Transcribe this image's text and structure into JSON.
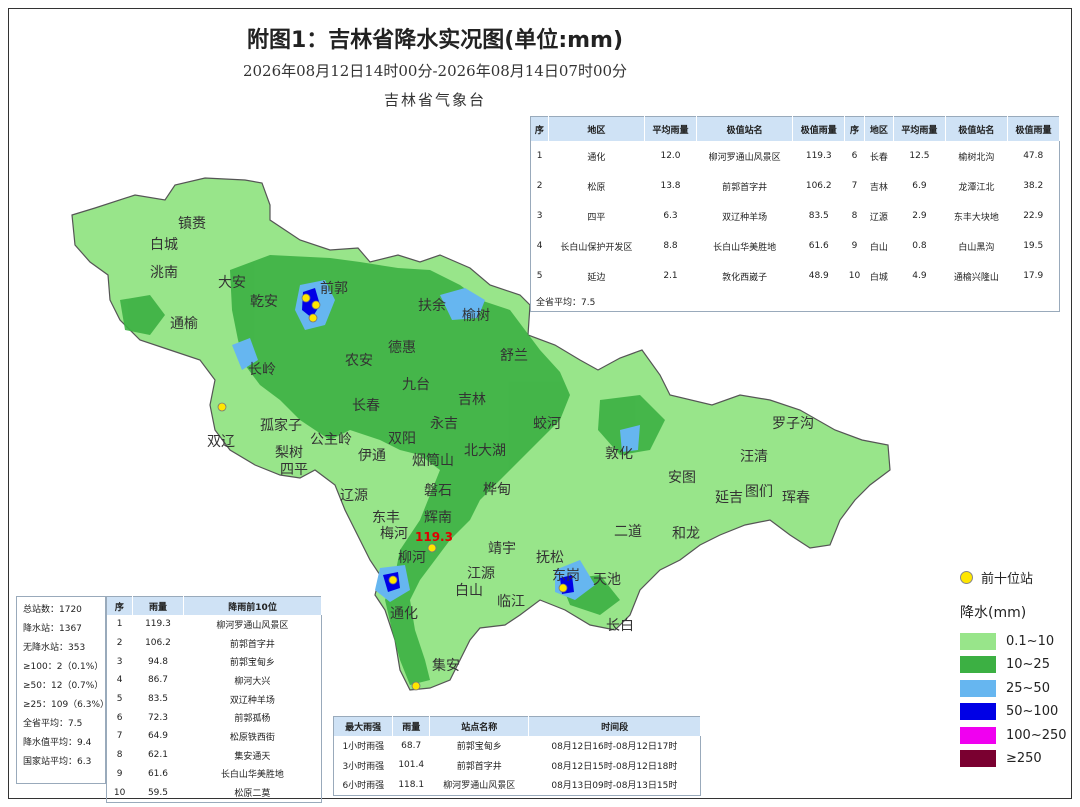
{
  "title": "附图1：吉林省降水实况图(单位:mm)",
  "time_range": "2026年08月12日14时00分-2026年08月14日07时00分",
  "issuer": "吉林省气象台",
  "region_table": {
    "headers": [
      "序",
      "地区",
      "平均雨量",
      "极值站名",
      "极值雨量",
      "序",
      "地区",
      "平均雨量",
      "极值站名",
      "极值雨量"
    ],
    "rows": [
      [
        "1",
        "通化",
        "12.0",
        "柳河罗通山风景区",
        "119.3",
        "6",
        "长春",
        "12.5",
        "榆树北沟",
        "47.8"
      ],
      [
        "2",
        "松原",
        "13.8",
        "前郭首字井",
        "106.2",
        "7",
        "吉林",
        "6.9",
        "龙潭江北",
        "38.2"
      ],
      [
        "3",
        "四平",
        "6.3",
        "双辽种羊场",
        "83.5",
        "8",
        "辽源",
        "2.9",
        "东丰大块地",
        "22.9"
      ],
      [
        "4",
        "长白山保护开发区",
        "8.8",
        "长白山华美胜地",
        "61.6",
        "9",
        "白山",
        "0.8",
        "白山黑沟",
        "19.5"
      ],
      [
        "5",
        "延边",
        "2.1",
        "敦化西崴子",
        "48.9",
        "10",
        "白城",
        "4.9",
        "通榆兴隆山",
        "17.9"
      ]
    ],
    "province_avg": "全省平均：7.5"
  },
  "stats": [
    "总站数：1720",
    "降水站：1367",
    "无降水站：353",
    "≥100：2（0.1%）",
    "≥50：12（0.7%）",
    "≥25：109（6.3%）",
    "全省平均：7.5",
    "降水值平均：9.4",
    "国家站平均：6.3"
  ],
  "top10": {
    "headers": [
      "序",
      "雨量",
      "降雨前10位"
    ],
    "rows": [
      [
        "1",
        "119.3",
        "柳河罗通山风景区"
      ],
      [
        "2",
        "106.2",
        "前郭首字井"
      ],
      [
        "3",
        "94.8",
        "前郭宝甸乡"
      ],
      [
        "4",
        "86.7",
        "柳河大兴"
      ],
      [
        "5",
        "83.5",
        "双辽种羊场"
      ],
      [
        "6",
        "72.3",
        "前郭孤杨"
      ],
      [
        "7",
        "64.9",
        "松原铁西街"
      ],
      [
        "8",
        "62.1",
        "集安通天"
      ],
      [
        "9",
        "61.6",
        "长白山华美胜地"
      ],
      [
        "10",
        "59.5",
        "松原二莫"
      ]
    ]
  },
  "max_rain": {
    "headers": [
      "最大雨强",
      "雨量",
      "站点名称",
      "时间段"
    ],
    "rows": [
      [
        "1小时雨强",
        "68.7",
        "前郭宝甸乡",
        "08月12日16时-08月12日17时"
      ],
      [
        "3小时雨强",
        "101.4",
        "前郭首字井",
        "08月12日15时-08月12日18时"
      ],
      [
        "6小时雨强",
        "118.1",
        "柳河罗通山风景区",
        "08月13日09时-08月13日15时"
      ]
    ]
  },
  "legend": {
    "top_station_label": "前十位站",
    "title": "降水(mm)",
    "items": [
      {
        "label": "0.1~10",
        "color": "#98e58a"
      },
      {
        "label": "10~25",
        "color": "#3cb043"
      },
      {
        "label": "25~50",
        "color": "#66b6f0"
      },
      {
        "label": "50~100",
        "color": "#0000e6"
      },
      {
        "label": "100~250",
        "color": "#f000f0"
      },
      {
        "label": "≥250",
        "color": "#7a0030"
      }
    ]
  },
  "map": {
    "max_value_label": "119.3",
    "cities": [
      "镇赉",
      "白城",
      "洮南",
      "大安",
      "前郭",
      "乾安",
      "通榆",
      "扶余",
      "榆树",
      "长岭",
      "农安",
      "德惠",
      "舒兰",
      "九台",
      "吉林",
      "长春",
      "双辽",
      "孤家子",
      "公主岭",
      "永吉",
      "双阳",
      "伊通",
      "蛟河",
      "北大湖",
      "梨树",
      "四平",
      "烟筒山",
      "罗子沟",
      "敦化",
      "汪清",
      "安图",
      "延吉",
      "图们",
      "珲春",
      "磐石",
      "辽源",
      "桦甸",
      "东丰",
      "辉南",
      "梅河",
      "柳河",
      "靖宇",
      "抚松",
      "二道",
      "和龙",
      "东岗",
      "天池",
      "江源",
      "白山",
      "临江",
      "通化",
      "长白",
      "集安"
    ]
  }
}
